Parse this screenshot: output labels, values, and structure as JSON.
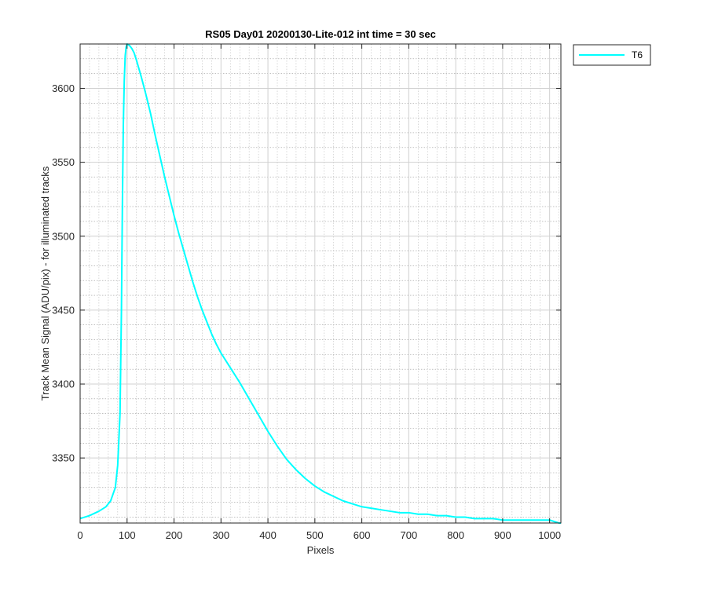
{
  "chart_data": {
    "type": "line",
    "title": "RS05 Day01 20200130-Lite-012 int time = 30 sec",
    "xlabel": "Pixels",
    "ylabel": "Track Mean Signal (ADU/pix) - for illuminated tracks",
    "xlim": [
      0,
      1024
    ],
    "ylim": [
      3306,
      3630
    ],
    "xticks": [
      0,
      100,
      200,
      300,
      400,
      500,
      600,
      700,
      800,
      900,
      1000
    ],
    "yticks": [
      3350,
      3400,
      3450,
      3500,
      3550,
      3600
    ],
    "grid": "major+minor",
    "legend_position": "outside-top-right",
    "series": [
      {
        "name": "T6",
        "color": "#00FFFF",
        "x": [
          0,
          20,
          40,
          55,
          65,
          75,
          80,
          85,
          88,
          90,
          92,
          94,
          96,
          98,
          100,
          105,
          110,
          115,
          120,
          130,
          140,
          150,
          160,
          170,
          180,
          190,
          200,
          210,
          220,
          230,
          240,
          250,
          260,
          270,
          280,
          290,
          300,
          320,
          340,
          360,
          380,
          400,
          420,
          440,
          460,
          480,
          500,
          520,
          540,
          560,
          580,
          600,
          620,
          640,
          660,
          680,
          700,
          720,
          740,
          760,
          780,
          800,
          820,
          840,
          860,
          880,
          900,
          920,
          940,
          960,
          980,
          1000,
          1010,
          1020,
          1024
        ],
        "y": [
          3309,
          3311,
          3314,
          3317,
          3321,
          3330,
          3345,
          3380,
          3450,
          3520,
          3575,
          3605,
          3622,
          3628,
          3630,
          3629,
          3627,
          3624,
          3619,
          3608,
          3596,
          3583,
          3568,
          3554,
          3540,
          3527,
          3514,
          3502,
          3491,
          3480,
          3469,
          3459,
          3450,
          3442,
          3434,
          3427,
          3421,
          3411,
          3401,
          3390,
          3379,
          3368,
          3358,
          3349,
          3342,
          3336,
          3331,
          3327,
          3324,
          3321,
          3319,
          3317,
          3316,
          3315,
          3314,
          3313,
          3313,
          3312,
          3312,
          3311,
          3311,
          3310,
          3310,
          3309,
          3309,
          3309,
          3308,
          3308,
          3308,
          3308,
          3308,
          3308,
          3307,
          3306,
          3306
        ]
      }
    ]
  }
}
